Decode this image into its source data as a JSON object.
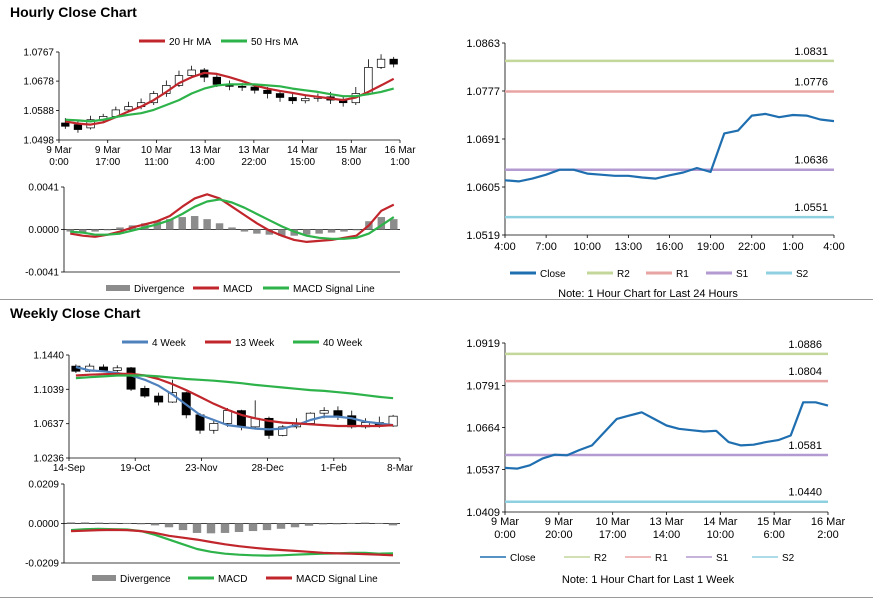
{
  "sections": {
    "hourly_title": "Hourly Close Chart",
    "weekly_title": "Weekly Close Chart"
  },
  "colors": {
    "ma20": "#c0262b",
    "ma50": "#2db34a",
    "close": "#1f6fb0",
    "r2": "#c4d79b",
    "r1": "#e8a3a3",
    "s1": "#b39ad1",
    "s2": "#8fd0e0",
    "week4": "#4f81bd",
    "week13": "#c0262b",
    "week40": "#2db34a",
    "divergence": "#8c8c8c",
    "macd": "#c0262b",
    "signal": "#2db34a"
  },
  "chart_data": [
    {
      "id": "hourly-price",
      "type": "line",
      "legend": [
        "20 Hr MA",
        "50 Hrs MA"
      ],
      "x_ticks": [
        [
          "9 Mar",
          "0:00"
        ],
        [
          "9 Mar",
          "17:00"
        ],
        [
          "10 Mar",
          "11:00"
        ],
        [
          "13 Mar",
          "4:00"
        ],
        [
          "13 Mar",
          "22:00"
        ],
        [
          "14 Mar",
          "15:00"
        ],
        [
          "15 Mar",
          "8:00"
        ],
        [
          "16 Mar",
          "1:00"
        ]
      ],
      "y_ticks": [
        "1.0767",
        "1.0678",
        "1.0588",
        "1.0498"
      ],
      "ylim": [
        1.0498,
        1.0767
      ],
      "n": 122,
      "series": [
        {
          "name": "20 Hr MA",
          "y": [
            1.0555,
            1.0548,
            1.0545,
            1.0552,
            1.0568,
            1.0585,
            1.06,
            1.062,
            1.0645,
            1.0672,
            1.069,
            1.0703,
            1.07,
            1.069,
            1.0678,
            1.0665,
            1.0655,
            1.0648,
            1.0642,
            1.0635,
            1.063,
            1.0625,
            1.062,
            1.0628,
            1.0645,
            1.0665,
            1.0685
          ]
        },
        {
          "name": "50 Hrs MA",
          "y": [
            1.056,
            1.0558,
            1.0555,
            1.056,
            1.0568,
            1.0575,
            1.058,
            1.059,
            1.0605,
            1.062,
            1.064,
            1.0655,
            1.0665,
            1.0668,
            1.0668,
            1.0668,
            1.0665,
            1.0662,
            1.0655,
            1.065,
            1.0645,
            1.0638,
            1.0632,
            1.0632,
            1.0638,
            1.0645,
            1.0655
          ]
        }
      ],
      "candles": [
        [
          1.055,
          1.054,
          1.0565,
          1.0532
        ],
        [
          1.0545,
          1.053,
          1.0558,
          1.052
        ],
        [
          1.0535,
          1.056,
          1.0572,
          1.053
        ],
        [
          1.056,
          1.057,
          1.0578,
          1.0552
        ],
        [
          1.057,
          1.059,
          1.06,
          1.0565
        ],
        [
          1.059,
          1.06,
          1.0615,
          1.0582
        ],
        [
          1.06,
          1.0612,
          1.0625,
          1.0592
        ],
        [
          1.0612,
          1.064,
          1.0648,
          1.0605
        ],
        [
          1.064,
          1.0665,
          1.068,
          1.063
        ],
        [
          1.0665,
          1.0695,
          1.071,
          1.066
        ],
        [
          1.0695,
          1.0712,
          1.0725,
          1.069
        ],
        [
          1.0712,
          1.069,
          1.0718,
          1.0675
        ],
        [
          1.069,
          1.0668,
          1.07,
          1.066
        ],
        [
          1.0668,
          1.0662,
          1.068,
          1.065
        ],
        [
          1.0662,
          1.066,
          1.0672,
          1.0648
        ],
        [
          1.066,
          1.065,
          1.0668,
          1.064
        ],
        [
          1.065,
          1.064,
          1.066,
          1.0625
        ],
        [
          1.064,
          1.0628,
          1.065,
          1.0615
        ],
        [
          1.0628,
          1.0618,
          1.064,
          1.0608
        ],
        [
          1.0618,
          1.0625,
          1.0635,
          1.061
        ],
        [
          1.0625,
          1.063,
          1.064,
          1.0615
        ],
        [
          1.063,
          1.062,
          1.0645,
          1.0608
        ],
        [
          1.062,
          1.0612,
          1.0632,
          1.06
        ],
        [
          1.0612,
          1.064,
          1.066,
          1.0605
        ],
        [
          1.064,
          1.072,
          1.0745,
          1.0635
        ],
        [
          1.072,
          1.0745,
          1.076,
          1.0715
        ],
        [
          1.0745,
          1.073,
          1.0752,
          1.072
        ]
      ]
    },
    {
      "id": "hourly-macd",
      "type": "bar",
      "legend": [
        "Divergence",
        "MACD",
        "MACD Signal Line"
      ],
      "y_ticks": [
        "0.0041",
        "0.0000",
        "-0.0041"
      ],
      "ylim": [
        -0.0041,
        0.0041
      ],
      "series": [
        {
          "name": "Divergence",
          "values": [
            -0.0002,
            -0.0003,
            -0.0002,
            0.0,
            0.0002,
            0.0004,
            0.0006,
            0.0008,
            0.001,
            0.0012,
            0.0013,
            0.001,
            0.0006,
            0.0002,
            -0.0002,
            -0.0004,
            -0.0005,
            -0.0006,
            -0.0006,
            -0.0005,
            -0.0004,
            -0.0003,
            -0.0002,
            0.0,
            0.0008,
            0.0012,
            0.001
          ]
        },
        {
          "name": "MACD",
          "values": [
            -0.0004,
            -0.0006,
            -0.0007,
            -0.0005,
            -0.0002,
            0.0002,
            0.0005,
            0.0008,
            0.0013,
            0.0022,
            0.003,
            0.0034,
            0.003,
            0.0022,
            0.0014,
            0.0006,
            -0.0001,
            -0.0006,
            -0.001,
            -0.0012,
            -0.0011,
            -0.001,
            -0.0008,
            -0.0006,
            0.0004,
            0.0018,
            0.0024
          ]
        },
        {
          "name": "MACD Signal Line",
          "values": [
            -0.0002,
            -0.0003,
            -0.0005,
            -0.0005,
            -0.0004,
            -0.0001,
            0.0002,
            0.0005,
            0.0009,
            0.0015,
            0.0022,
            0.0027,
            0.0029,
            0.0026,
            0.0021,
            0.0015,
            0.0009,
            0.0003,
            -0.0002,
            -0.0006,
            -0.0008,
            -0.0009,
            -0.0009,
            -0.0008,
            -0.0004,
            0.0004,
            0.0012
          ]
        }
      ]
    },
    {
      "id": "hourly-pivots",
      "type": "line",
      "legend": [
        "Close",
        "R2",
        "R1",
        "S1",
        "S2"
      ],
      "x_ticks": [
        "4:00",
        "7:00",
        "10:00",
        "13:00",
        "16:00",
        "19:00",
        "22:00",
        "1:00",
        "4:00"
      ],
      "y_ticks": [
        "1.0863",
        "1.0777",
        "1.0691",
        "1.0605",
        "1.0519"
      ],
      "ylim": [
        1.0519,
        1.0863
      ],
      "levels": {
        "R2": 1.0831,
        "R1": 1.0776,
        "S1": 1.0636,
        "S2": 1.0551
      },
      "level_labels": [
        "1.0831",
        "1.0776",
        "1.0636",
        "1.0551"
      ],
      "series": [
        {
          "name": "Close",
          "y": [
            1.0617,
            1.0615,
            1.062,
            1.0627,
            1.0636,
            1.0636,
            1.0629,
            1.0627,
            1.0625,
            1.0625,
            1.0622,
            1.062,
            1.0626,
            1.0631,
            1.0639,
            1.0632,
            1.0701,
            1.0706,
            1.0733,
            1.0736,
            1.073,
            1.0734,
            1.0733,
            1.0726,
            1.0723
          ]
        }
      ],
      "note": "Note: 1 Hour Chart for Last 24 Hours"
    },
    {
      "id": "weekly-price",
      "type": "line",
      "legend": [
        "4 Week",
        "13 Week",
        "40 Week"
      ],
      "x_ticks": [
        "14-Sep",
        "19-Oct",
        "23-Nov",
        "28-Dec",
        "1-Feb",
        "8-Mar"
      ],
      "y_ticks": [
        "1.1440",
        "1.1039",
        "1.0637",
        "1.0236"
      ],
      "ylim": [
        1.0236,
        1.144
      ],
      "series": [
        {
          "name": "4 Week",
          "y": [
            1.13,
            1.126,
            1.125,
            1.123,
            1.12,
            1.115,
            1.108,
            1.098,
            1.086,
            1.074,
            1.068,
            1.062,
            1.06,
            1.058,
            1.057,
            1.058,
            1.062,
            1.068,
            1.072,
            1.072,
            1.07,
            1.066,
            1.064,
            1.062
          ]
        },
        {
          "name": "13 Week",
          "y": [
            1.12,
            1.121,
            1.1215,
            1.122,
            1.122,
            1.12,
            1.116,
            1.11,
            1.103,
            1.095,
            1.087,
            1.08,
            1.074,
            1.07,
            1.067,
            1.065,
            1.064,
            1.063,
            1.062,
            1.061,
            1.061,
            1.061,
            1.061,
            1.062
          ]
        },
        {
          "name": "40 Week",
          "y": [
            1.117,
            1.118,
            1.119,
            1.12,
            1.12,
            1.12,
            1.119,
            1.1175,
            1.116,
            1.115,
            1.114,
            1.1125,
            1.111,
            1.109,
            1.1075,
            1.106,
            1.1045,
            1.103,
            1.102,
            1.1005,
            1.099,
            1.097,
            1.095,
            1.0935
          ]
        }
      ],
      "candles": [
        [
          1.131,
          1.125,
          1.133,
          1.123
        ],
        [
          1.125,
          1.131,
          1.134,
          1.124
        ],
        [
          1.13,
          1.126,
          1.133,
          1.124
        ],
        [
          1.126,
          1.129,
          1.132,
          1.123
        ],
        [
          1.129,
          1.104,
          1.13,
          1.102
        ],
        [
          1.105,
          1.096,
          1.108,
          1.094
        ],
        [
          1.096,
          1.089,
          1.1,
          1.085
        ],
        [
          1.089,
          1.1,
          1.115,
          1.088
        ],
        [
          1.1,
          1.074,
          1.101,
          1.07
        ],
        [
          1.074,
          1.056,
          1.076,
          1.052
        ],
        [
          1.056,
          1.064,
          1.068,
          1.052
        ],
        [
          1.064,
          1.079,
          1.082,
          1.06
        ],
        [
          1.079,
          1.06,
          1.08,
          1.056
        ],
        [
          1.06,
          1.07,
          1.091,
          1.058
        ],
        [
          1.07,
          1.05,
          1.072,
          1.046
        ],
        [
          1.05,
          1.06,
          1.062,
          1.049
        ],
        [
          1.06,
          1.064,
          1.07,
          1.058
        ],
        [
          1.064,
          1.076,
          1.077,
          1.062
        ],
        [
          1.076,
          1.079,
          1.083,
          1.07
        ],
        [
          1.079,
          1.073,
          1.084,
          1.068
        ],
        [
          1.073,
          1.06,
          1.079,
          1.058
        ],
        [
          1.06,
          1.065,
          1.07,
          1.058
        ],
        [
          1.065,
          1.061,
          1.072,
          1.059
        ],
        [
          1.061,
          1.0725,
          1.074,
          1.06
        ]
      ]
    },
    {
      "id": "weekly-macd",
      "type": "bar",
      "legend": [
        "Divergence",
        "MACD",
        "MACD Signal Line"
      ],
      "y_ticks": [
        "0.0209",
        "0.0000",
        "-0.0209"
      ],
      "ylim": [
        -0.0209,
        0.0209
      ],
      "series": [
        {
          "name": "Divergence",
          "values": [
            0.0006,
            0.0006,
            0.0005,
            0.0004,
            0.0003,
            0.0,
            -0.001,
            -0.002,
            -0.0035,
            -0.005,
            -0.0052,
            -0.005,
            -0.0045,
            -0.004,
            -0.0035,
            -0.0028,
            -0.002,
            -0.0012,
            -0.0005,
            0.0,
            0.0003,
            0.0005,
            0.0003,
            -0.001
          ]
        },
        {
          "name": "MACD",
          "values": [
            -0.0035,
            -0.003,
            -0.0028,
            -0.003,
            -0.0032,
            -0.004,
            -0.006,
            -0.0085,
            -0.011,
            -0.0135,
            -0.015,
            -0.016,
            -0.0165,
            -0.0168,
            -0.017,
            -0.0168,
            -0.0165,
            -0.0162,
            -0.016,
            -0.0158,
            -0.0155,
            -0.0155,
            -0.016,
            -0.0158
          ]
        },
        {
          "name": "MACD Signal Line",
          "values": [
            -0.004,
            -0.0038,
            -0.0035,
            -0.0034,
            -0.0035,
            -0.004,
            -0.005,
            -0.0065,
            -0.0075,
            -0.0085,
            -0.0098,
            -0.011,
            -0.012,
            -0.0128,
            -0.0135,
            -0.014,
            -0.0145,
            -0.015,
            -0.0155,
            -0.0158,
            -0.016,
            -0.0162,
            -0.0165,
            -0.0168
          ]
        }
      ]
    },
    {
      "id": "weekly-pivots",
      "type": "line",
      "legend": [
        "Close",
        "R2",
        "R1",
        "S1",
        "S2"
      ],
      "x_ticks": [
        [
          "9 Mar",
          "0:00"
        ],
        [
          "9 Mar",
          "20:00"
        ],
        [
          "10 Mar",
          "17:00"
        ],
        [
          "13 Mar",
          "14:00"
        ],
        [
          "14 Mar",
          "10:00"
        ],
        [
          "15 Mar",
          "6:00"
        ],
        [
          "16 Mar",
          "2:00"
        ]
      ],
      "y_ticks": [
        "1.0919",
        "1.0791",
        "1.0664",
        "1.0537",
        "1.0409"
      ],
      "ylim": [
        1.0409,
        1.0919
      ],
      "levels": {
        "R2": 1.0886,
        "R1": 1.0804,
        "S1": 1.0581,
        "S2": 1.044
      },
      "level_labels": [
        "1.0886",
        "1.0804",
        "1.0581",
        "1.0440"
      ],
      "series": [
        {
          "name": "Close",
          "y": [
            1.0542,
            1.054,
            1.055,
            1.057,
            1.0582,
            1.058,
            1.0596,
            1.061,
            1.065,
            1.069,
            1.07,
            1.071,
            1.069,
            1.067,
            1.066,
            1.0656,
            1.0652,
            1.0654,
            1.062,
            1.061,
            1.0612,
            1.062,
            1.0626,
            1.064,
            1.074,
            1.074,
            1.073
          ]
        }
      ],
      "note": "Note: 1 Hour Chart for Last 1 Week"
    }
  ]
}
